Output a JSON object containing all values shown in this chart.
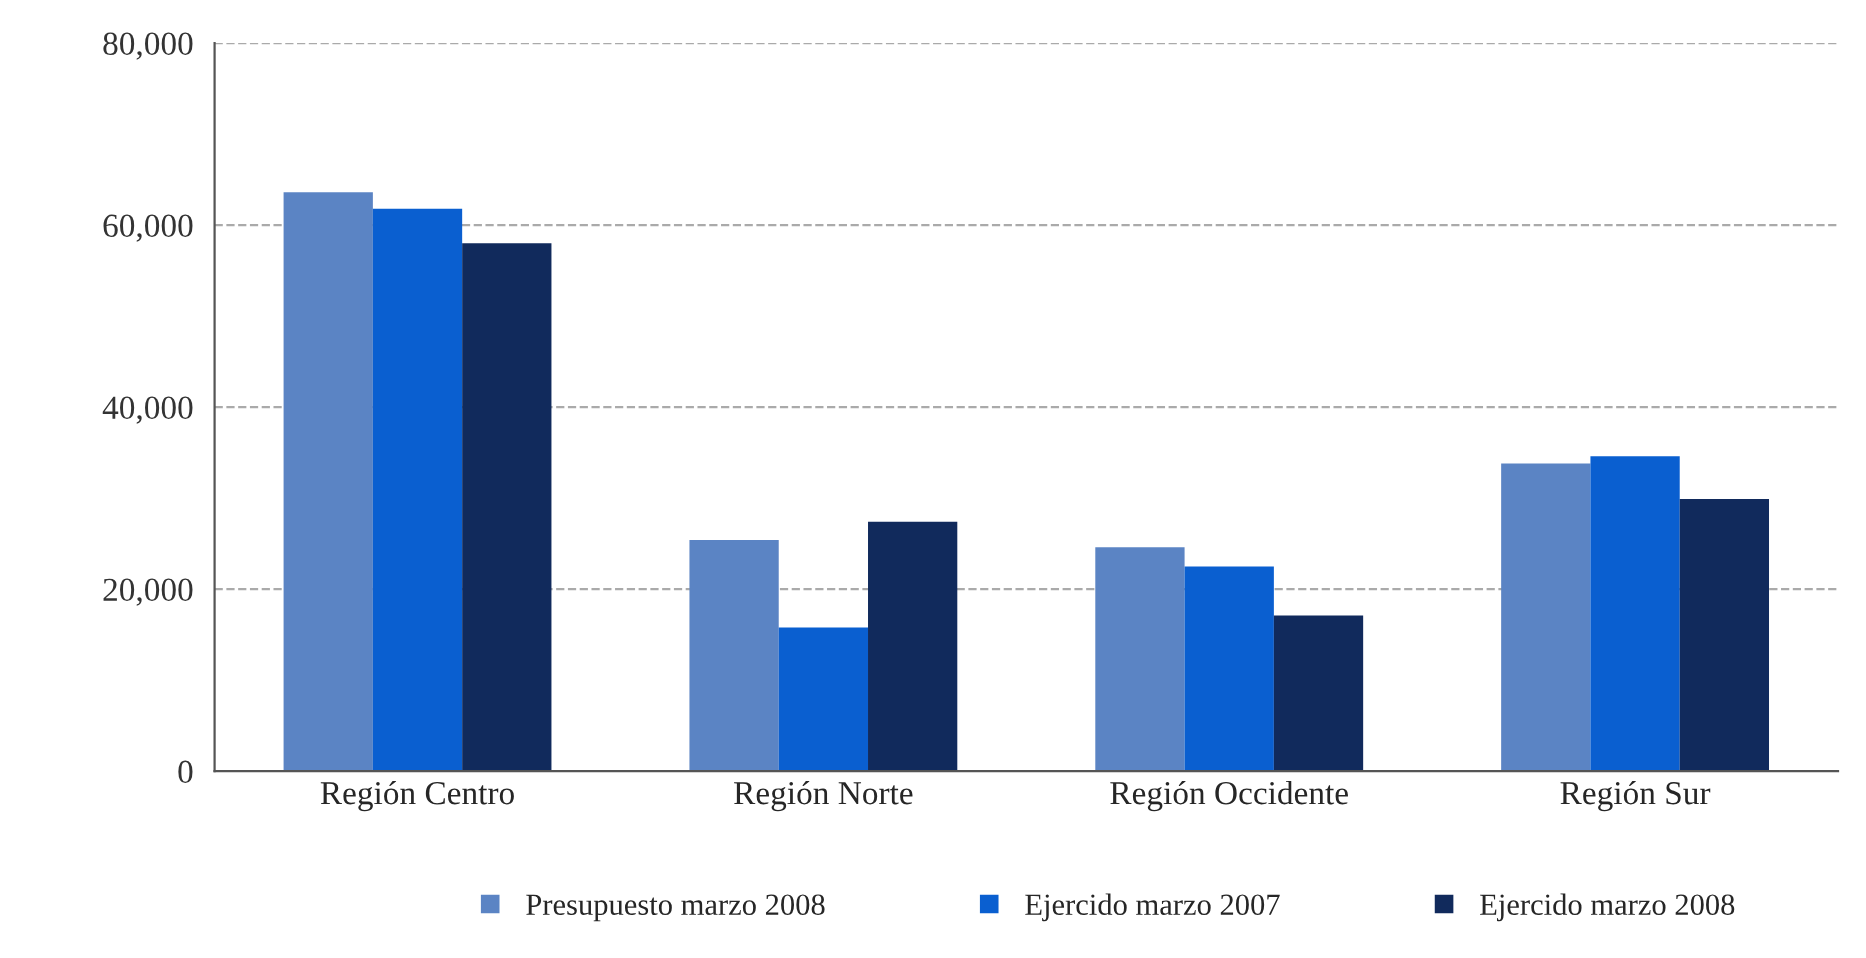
{
  "chart_data": {
    "type": "bar",
    "categories": [
      "Región Centro",
      "Región Norte",
      "Región Occidente",
      "Región Sur"
    ],
    "series": [
      {
        "name": "Presupuesto marzo 2008",
        "color": "#5b84c4",
        "values": [
          63600,
          25400,
          24600,
          33800
        ]
      },
      {
        "name": "Ejercido marzo 2007",
        "color": "#0a5fd0",
        "values": [
          61800,
          15800,
          22500,
          34600
        ]
      },
      {
        "name": "Ejercido marzo 2008",
        "color": "#112a5c",
        "values": [
          58000,
          27400,
          17100,
          29900
        ]
      }
    ],
    "ylim": [
      0,
      80000
    ],
    "yticks": [
      {
        "value": 0,
        "label": "0"
      },
      {
        "value": 20000,
        "label": "20,000"
      },
      {
        "value": 40000,
        "label": "40,000"
      },
      {
        "value": 60000,
        "label": "60,000"
      },
      {
        "value": 80000,
        "label": "80,000"
      }
    ],
    "grid": "y",
    "legend": "bottom"
  }
}
